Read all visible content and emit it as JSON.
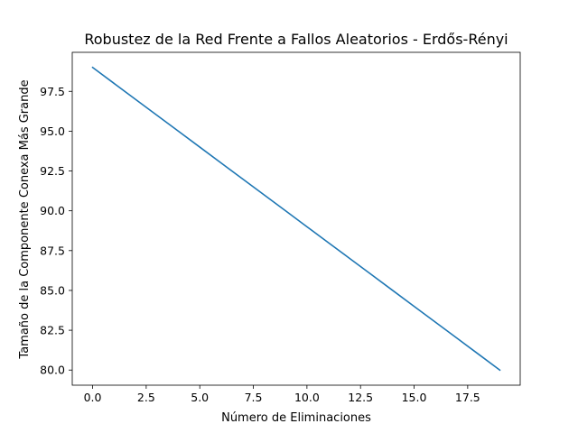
{
  "chart_data": {
    "type": "line",
    "title": "Robustez de la Red Frente a Fallos Aleatorios - Erdős-Rényi",
    "xlabel": "Número de Eliminaciones",
    "ylabel": "Tamaño de la Componente Conexa Más Grande",
    "xlim": [
      -0.95,
      19.95
    ],
    "ylim": [
      79.05,
      99.95
    ],
    "xticks": [
      0,
      2.5,
      5,
      7.5,
      10,
      12.5,
      15,
      17.5
    ],
    "xtick_labels": [
      "0.0",
      "2.5",
      "5.0",
      "7.5",
      "10.0",
      "12.5",
      "15.0",
      "17.5"
    ],
    "yticks": [
      80,
      82.5,
      85,
      87.5,
      90,
      92.5,
      95,
      97.5
    ],
    "ytick_labels": [
      "80.0",
      "82.5",
      "85.0",
      "87.5",
      "90.0",
      "92.5",
      "95.0",
      "97.5"
    ],
    "grid": false,
    "legend": "none",
    "series": [
      {
        "color": "#1f77b4",
        "x": [
          0,
          1,
          2,
          3,
          4,
          5,
          6,
          7,
          8,
          9,
          10,
          11,
          12,
          13,
          14,
          15,
          16,
          17,
          18,
          19
        ],
        "values": [
          99,
          98,
          97,
          96,
          95,
          94,
          93,
          92,
          91,
          90,
          89,
          88,
          87,
          86,
          85,
          84,
          83,
          82,
          81,
          80
        ]
      }
    ]
  }
}
